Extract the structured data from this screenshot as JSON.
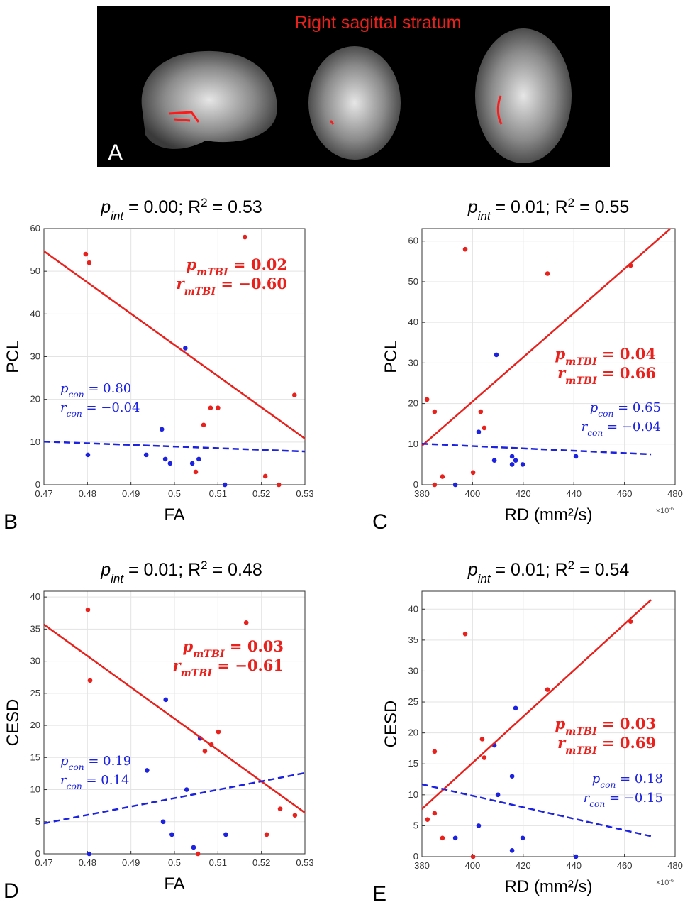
{
  "panel_a": {
    "label": "A",
    "title": "Right sagittal stratum"
  },
  "chart_data": [
    {
      "type": "scatter",
      "panel_label": "B",
      "title": [
        {
          "text": "p",
          "style": "italic"
        },
        {
          "text": "int",
          "style": "sub"
        },
        {
          "text": " = 0.00;  R"
        },
        {
          "text": "2",
          "style": "sup"
        },
        {
          "text": " = 0.53"
        }
      ],
      "xlabel": "FA",
      "ylabel": "PCL",
      "xlim": [
        0.47,
        0.53
      ],
      "xticks": [
        0.47,
        0.48,
        0.49,
        0.5,
        0.51,
        0.52,
        0.53
      ],
      "ylim": [
        0,
        60
      ],
      "yticks": [
        0,
        10,
        20,
        30,
        40,
        50,
        60
      ],
      "grid": true,
      "series": [
        {
          "style": "points",
          "color": "#e8211c",
          "x": [
            0.4796,
            0.4804,
            0.5162,
            0.5276,
            0.5083,
            0.51,
            0.5067,
            0.5049,
            0.5209,
            0.524
          ],
          "values": [
            54,
            52,
            58,
            21,
            18,
            18,
            14,
            3,
            2,
            0
          ]
        },
        {
          "style": "points",
          "color": "#1c22e0",
          "x": [
            0.5025,
            0.4971,
            0.4801,
            0.4935,
            0.4979,
            0.499,
            0.5041,
            0.5056,
            0.5116
          ],
          "values": [
            32,
            13,
            7,
            7,
            6,
            5,
            5,
            6,
            0
          ]
        },
        {
          "style": "solid",
          "color": "#e8211c",
          "x": [
            0.47,
            0.53
          ],
          "values": [
            54.7,
            10.8
          ]
        },
        {
          "style": "dashed",
          "color": "#1c22e0",
          "x": [
            0.47,
            0.53
          ],
          "values": [
            10.1,
            7.8
          ]
        }
      ],
      "annotations": [
        {
          "color": "#e8211c",
          "bold": true,
          "lines": [
            [
              {
                "text": "p",
                "style": "italic"
              },
              {
                "text": "mTBI",
                "style": "sub"
              },
              {
                "text": " = 0.02"
              }
            ],
            [
              {
                "text": "r",
                "style": "italic"
              },
              {
                "text": "mTBI",
                "style": "sub"
              },
              {
                "text": " = −0.60"
              }
            ]
          ]
        },
        {
          "color": "#1c22e0",
          "bold": false,
          "lines": [
            [
              {
                "text": "p",
                "style": "italic"
              },
              {
                "text": "con",
                "style": "sub"
              },
              {
                "text": " = 0.80"
              }
            ],
            [
              {
                "text": "r",
                "style": "italic"
              },
              {
                "text": "con",
                "style": "sub"
              },
              {
                "text": " = −0.04"
              }
            ]
          ]
        }
      ]
    },
    {
      "type": "scatter",
      "panel_label": "C",
      "title": [
        {
          "text": "p",
          "style": "italic"
        },
        {
          "text": "int",
          "style": "sub"
        },
        {
          "text": " = 0.01;  R"
        },
        {
          "text": "2",
          "style": "sup"
        },
        {
          "text": " = 0.55"
        }
      ],
      "xlabel": "RD (mm²/s)",
      "ylabel": "PCL",
      "x_multiplier": [
        {
          "text": "×10"
        },
        {
          "text": "-6",
          "style": "sup"
        }
      ],
      "xlim": [
        380,
        480
      ],
      "xticks": [
        380,
        400,
        420,
        440,
        460,
        480
      ],
      "ylim": [
        0,
        63.1
      ],
      "yticks": [
        0,
        10,
        20,
        30,
        40,
        50,
        60
      ],
      "grid": true,
      "series": [
        {
          "style": "points",
          "color": "#e8211c",
          "x": [
            397.1,
            429.6,
            462.4,
            382,
            385,
            403.2,
            404.6,
            388.1,
            400.2,
            385
          ],
          "values": [
            58,
            52,
            54,
            21,
            18,
            18,
            14,
            2,
            3,
            0
          ]
        },
        {
          "style": "points",
          "color": "#1c22e0",
          "x": [
            409.4,
            402.4,
            408.6,
            415.6,
            415.6,
            417,
            419.8,
            440.8,
            393.2
          ],
          "values": [
            32,
            13,
            6,
            7,
            5,
            6,
            5,
            7,
            0
          ]
        },
        {
          "style": "solid",
          "color": "#e8211c",
          "x": [
            380,
            478
          ],
          "values": [
            9.6,
            63
          ]
        },
        {
          "style": "dashed",
          "color": "#1c22e0",
          "x": [
            380,
            470.5
          ],
          "values": [
            10.1,
            7.5
          ]
        }
      ],
      "annotations": [
        {
          "color": "#e8211c",
          "bold": true,
          "lines": [
            [
              {
                "text": "p",
                "style": "italic"
              },
              {
                "text": "mTBI",
                "style": "sub"
              },
              {
                "text": " = 0.04"
              }
            ],
            [
              {
                "text": "r",
                "style": "italic"
              },
              {
                "text": "mTBI",
                "style": "sub"
              },
              {
                "text": " = 0.66"
              }
            ]
          ]
        },
        {
          "color": "#1c22e0",
          "bold": false,
          "lines": [
            [
              {
                "text": "p",
                "style": "italic"
              },
              {
                "text": "con",
                "style": "sub"
              },
              {
                "text": " = 0.65"
              }
            ],
            [
              {
                "text": "r",
                "style": "italic"
              },
              {
                "text": "con",
                "style": "sub"
              },
              {
                "text": " = −0.04"
              }
            ]
          ]
        }
      ]
    },
    {
      "type": "scatter",
      "panel_label": "D",
      "title": [
        {
          "text": "p",
          "style": "italic"
        },
        {
          "text": "int",
          "style": "sub"
        },
        {
          "text": " = 0.01;  R"
        },
        {
          "text": "2",
          "style": "sup"
        },
        {
          "text": " = 0.48"
        }
      ],
      "xlabel": "FA",
      "ylabel": "CESD",
      "xlim": [
        0.47,
        0.53
      ],
      "xticks": [
        0.47,
        0.48,
        0.49,
        0.5,
        0.51,
        0.52,
        0.53
      ],
      "ylim": [
        0,
        40.9
      ],
      "yticks": [
        0,
        5,
        10,
        15,
        20,
        25,
        30,
        35,
        40
      ],
      "grid": true,
      "series": [
        {
          "style": "points",
          "color": "#e8211c",
          "x": [
            0.4801,
            0.4806,
            0.5165,
            0.5101,
            0.5085,
            0.507,
            0.5054,
            0.5212,
            0.5243,
            0.5277
          ],
          "values": [
            38,
            27,
            36,
            19,
            17,
            16,
            0,
            3,
            7,
            6
          ]
        },
        {
          "style": "points",
          "color": "#1c22e0",
          "x": [
            0.498,
            0.4937,
            0.5028,
            0.4974,
            0.4994,
            0.5118,
            0.5044,
            0.4804,
            0.5059
          ],
          "values": [
            24,
            13,
            10,
            5,
            3,
            3,
            1,
            0,
            18
          ]
        },
        {
          "style": "solid",
          "color": "#e8211c",
          "x": [
            0.47,
            0.53
          ],
          "values": [
            35.7,
            6.4
          ]
        },
        {
          "style": "dashed",
          "color": "#1c22e0",
          "x": [
            0.47,
            0.53
          ],
          "values": [
            4.75,
            12.6
          ]
        }
      ],
      "annotations": [
        {
          "color": "#e8211c",
          "bold": true,
          "lines": [
            [
              {
                "text": "p",
                "style": "italic"
              },
              {
                "text": "mTBI",
                "style": "sub"
              },
              {
                "text": " = 0.03"
              }
            ],
            [
              {
                "text": "r",
                "style": "italic"
              },
              {
                "text": "mTBI",
                "style": "sub"
              },
              {
                "text": " = −0.61"
              }
            ]
          ]
        },
        {
          "color": "#1c22e0",
          "bold": false,
          "lines": [
            [
              {
                "text": "p",
                "style": "italic"
              },
              {
                "text": "con",
                "style": "sub"
              },
              {
                "text": " = 0.19"
              }
            ],
            [
              {
                "text": "r",
                "style": "italic"
              },
              {
                "text": "con",
                "style": "sub"
              },
              {
                "text": " = 0.14"
              }
            ]
          ]
        }
      ]
    },
    {
      "type": "scatter",
      "panel_label": "E",
      "title": [
        {
          "text": "p",
          "style": "italic"
        },
        {
          "text": "int",
          "style": "sub"
        },
        {
          "text": " = 0.01;  R"
        },
        {
          "text": "2",
          "style": "sup"
        },
        {
          "text": " = 0.54"
        }
      ],
      "xlabel": "RD (mm²/s)",
      "ylabel": "CESD",
      "x_multiplier": [
        {
          "text": "×10"
        },
        {
          "text": "-6",
          "style": "sup"
        }
      ],
      "xlim": [
        380,
        480
      ],
      "xticks": [
        380,
        400,
        420,
        440,
        460,
        480
      ],
      "ylim": [
        0,
        42.9
      ],
      "yticks": [
        0,
        5,
        10,
        15,
        20,
        25,
        30,
        35,
        40
      ],
      "grid": true,
      "series": [
        {
          "style": "points",
          "color": "#e8211c",
          "x": [
            462.4,
            429.6,
            397.1,
            403.8,
            385,
            404.6,
            382.2,
            385,
            388.1,
            400.2
          ],
          "values": [
            38,
            27,
            36,
            19,
            17,
            16,
            6,
            7,
            3,
            0
          ]
        },
        {
          "style": "points",
          "color": "#1c22e0",
          "x": [
            417,
            415.6,
            408.6,
            410,
            402.4,
            393.2,
            415.6,
            419.8,
            440.8
          ],
          "values": [
            24,
            13,
            18,
            10,
            5,
            3,
            1,
            3,
            0
          ]
        },
        {
          "style": "solid",
          "color": "#e8211c",
          "x": [
            380,
            470.5
          ],
          "values": [
            7.7,
            41.5
          ]
        },
        {
          "style": "dashed",
          "color": "#1c22e0",
          "x": [
            380,
            470.5
          ],
          "values": [
            11.7,
            3.3
          ]
        }
      ],
      "annotations": [
        {
          "color": "#e8211c",
          "bold": true,
          "lines": [
            [
              {
                "text": "p",
                "style": "italic"
              },
              {
                "text": "mTBI",
                "style": "sub"
              },
              {
                "text": " = 0.03"
              }
            ],
            [
              {
                "text": "r",
                "style": "italic"
              },
              {
                "text": "mTBI",
                "style": "sub"
              },
              {
                "text": " = 0.69"
              }
            ]
          ]
        },
        {
          "color": "#1c22e0",
          "bold": false,
          "lines": [
            [
              {
                "text": "p",
                "style": "italic"
              },
              {
                "text": "con",
                "style": "sub"
              },
              {
                "text": " = 0.18"
              }
            ],
            [
              {
                "text": "r",
                "style": "italic"
              },
              {
                "text": "con",
                "style": "sub"
              },
              {
                "text": " = −0.15"
              }
            ]
          ]
        }
      ]
    }
  ]
}
